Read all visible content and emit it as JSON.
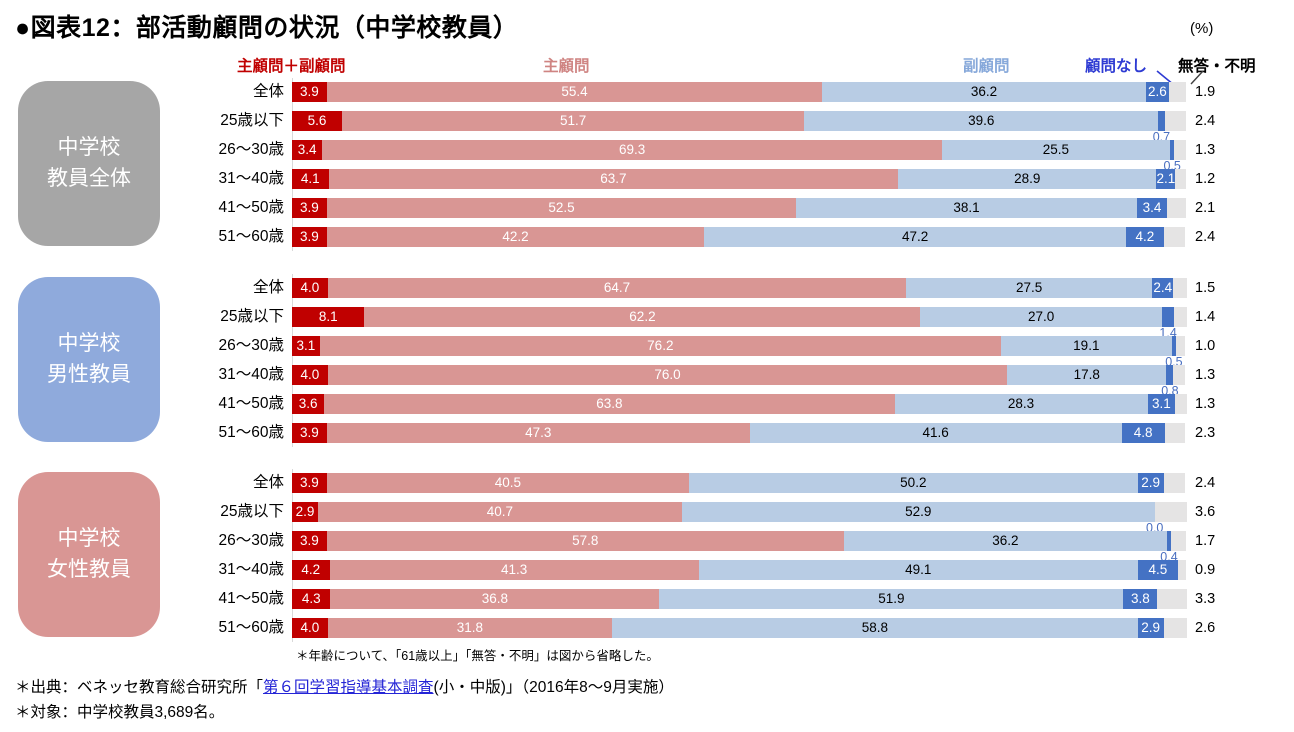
{
  "title": "●図表12：部活動顧問の状況（中学校教員）",
  "unit_label": "(%)",
  "legend": [
    {
      "label": "主顧問＋副顧問",
      "text_color": "#c00000",
      "bar_color": "#c00000"
    },
    {
      "label": "主顧問",
      "text_color": "#cf8482",
      "bar_color": "#d99694"
    },
    {
      "label": "副顧問",
      "text_color": "#86a8da",
      "bar_color": "#b8cce4"
    },
    {
      "label": "顧問なし",
      "text_color": "#2e3bd3",
      "bar_color": "#4472c4"
    },
    {
      "label": "無答・不明",
      "text_color": "#000000",
      "bar_color": "#e5e4e4"
    }
  ],
  "chart_data": {
    "type": "bar",
    "stacked": true,
    "orientation": "horizontal",
    "unit": "%",
    "xlim": [
      0,
      100
    ],
    "series_names": [
      "主顧問＋副顧問",
      "主顧問",
      "副顧問",
      "顧問なし",
      "無答・不明"
    ],
    "groups": [
      {
        "name": "中学校\n教員全体",
        "box_color": "#a6a6a6",
        "rows": [
          {
            "label": "全体",
            "values": [
              "3.9",
              "55.4",
              "36.2",
              "2.6",
              "1.9"
            ]
          },
          {
            "label": "25歳以下",
            "values": [
              "5.6",
              "51.7",
              "39.6",
              "0.7",
              "2.4"
            ]
          },
          {
            "label": "26〜30歳",
            "values": [
              "3.4",
              "69.3",
              "25.5",
              "0.5",
              "1.3"
            ]
          },
          {
            "label": "31〜40歳",
            "values": [
              "4.1",
              "63.7",
              "28.9",
              "2.1",
              "1.2"
            ]
          },
          {
            "label": "41〜50歳",
            "values": [
              "3.9",
              "52.5",
              "38.1",
              "3.4",
              "2.1"
            ]
          },
          {
            "label": "51〜60歳",
            "values": [
              "3.9",
              "42.2",
              "47.2",
              "4.2",
              "2.4"
            ]
          }
        ]
      },
      {
        "name": "中学校\n男性教員",
        "box_color": "#8faadc",
        "rows": [
          {
            "label": "全体",
            "values": [
              "4.0",
              "64.7",
              "27.5",
              "2.4",
              "1.5"
            ]
          },
          {
            "label": "25歳以下",
            "values": [
              "8.1",
              "62.2",
              "27.0",
              "1.4",
              "1.4"
            ]
          },
          {
            "label": "26〜30歳",
            "values": [
              "3.1",
              "76.2",
              "19.1",
              "0.5",
              "1.0"
            ]
          },
          {
            "label": "31〜40歳",
            "values": [
              "4.0",
              "76.0",
              "17.8",
              "0.8",
              "1.3"
            ]
          },
          {
            "label": "41〜50歳",
            "values": [
              "3.6",
              "63.8",
              "28.3",
              "3.1",
              "1.3"
            ]
          },
          {
            "label": "51〜60歳",
            "values": [
              "3.9",
              "47.3",
              "41.6",
              "4.8",
              "2.3"
            ]
          }
        ]
      },
      {
        "name": "中学校\n女性教員",
        "box_color": "#d99694",
        "rows": [
          {
            "label": "全体",
            "values": [
              "3.9",
              "40.5",
              "50.2",
              "2.9",
              "2.4"
            ]
          },
          {
            "label": "25歳以下",
            "values": [
              "2.9",
              "40.7",
              "52.9",
              "0.0",
              "3.6"
            ]
          },
          {
            "label": "26〜30歳",
            "values": [
              "3.9",
              "57.8",
              "36.2",
              "0.4",
              "1.7"
            ]
          },
          {
            "label": "31〜40歳",
            "values": [
              "4.2",
              "41.3",
              "49.1",
              "4.5",
              "0.9"
            ]
          },
          {
            "label": "41〜50歳",
            "values": [
              "4.3",
              "36.8",
              "51.9",
              "3.8",
              "3.3"
            ]
          },
          {
            "label": "51〜60歳",
            "values": [
              "4.0",
              "31.8",
              "58.8",
              "2.9",
              "2.6"
            ]
          }
        ]
      }
    ]
  },
  "footnote": "＊年齢について、「61歳以上」「無答・不明」は図から省略した。",
  "source": {
    "prefix": "＊出典：ベネッセ教育総合研究所「",
    "link_text": "第６回学習指導基本調査",
    "suffix": "(小・中版)」（2016年8〜9月実施）"
  },
  "target_line": "＊対象：中学校教員3,689名。"
}
